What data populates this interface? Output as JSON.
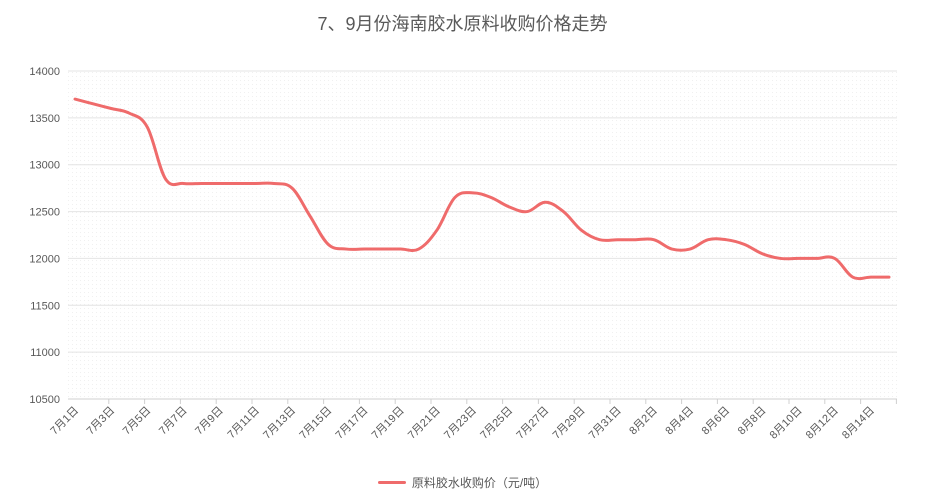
{
  "chart_data": {
    "type": "line",
    "title": "7、9月份海南胶水原料收购价格走势",
    "xlabel": "",
    "ylabel": "",
    "ylim": [
      10500,
      14000
    ],
    "yticks": [
      10500,
      11000,
      11500,
      12000,
      12500,
      13000,
      13500,
      14000
    ],
    "categories": [
      "7月1日",
      "7月2日",
      "7月3日",
      "7月4日",
      "7月5日",
      "7月6日",
      "7月7日",
      "7月8日",
      "7月9日",
      "7月10日",
      "7月11日",
      "7月12日",
      "7月13日",
      "7月14日",
      "7月15日",
      "7月16日",
      "7月17日",
      "7月18日",
      "7月19日",
      "7月20日",
      "7月21日",
      "7月22日",
      "7月23日",
      "7月24日",
      "7月25日",
      "7月26日",
      "7月27日",
      "7月28日",
      "7月29日",
      "7月30日",
      "7月31日",
      "8月1日",
      "8月2日",
      "8月3日",
      "8月4日",
      "8月5日",
      "8月6日",
      "8月7日",
      "8月8日",
      "8月9日",
      "8月10日",
      "8月11日",
      "8月12日",
      "8月13日",
      "8月14日",
      "8月15日"
    ],
    "tick_labels": [
      "7月1日",
      "7月3日",
      "7月5日",
      "7月7日",
      "7月9日",
      "7月11日",
      "7月13日",
      "7月15日",
      "7月17日",
      "7月19日",
      "7月21日",
      "7月23日",
      "7月25日",
      "7月27日",
      "7月29日",
      "7月31日",
      "8月2日",
      "8月4日",
      "8月6日",
      "8月8日",
      "8月10日",
      "8月12日",
      "8月14日"
    ],
    "series": [
      {
        "name": "原料胶水收购价（元/吨）",
        "color": "#ef6b6b",
        "values": [
          13700,
          13650,
          13600,
          13550,
          13400,
          12850,
          12800,
          12800,
          12800,
          12800,
          12800,
          12800,
          12750,
          12450,
          12150,
          12100,
          12100,
          12100,
          12100,
          12100,
          12300,
          12650,
          12700,
          12650,
          12550,
          12500,
          12600,
          12500,
          12300,
          12200,
          12200,
          12200,
          12200,
          12100,
          12100,
          12200,
          12200,
          12150,
          12050,
          12000,
          12000,
          12000,
          12000,
          11800,
          11800,
          11800
        ]
      }
    ],
    "grid": "horizontal",
    "legend_position": "bottom"
  }
}
